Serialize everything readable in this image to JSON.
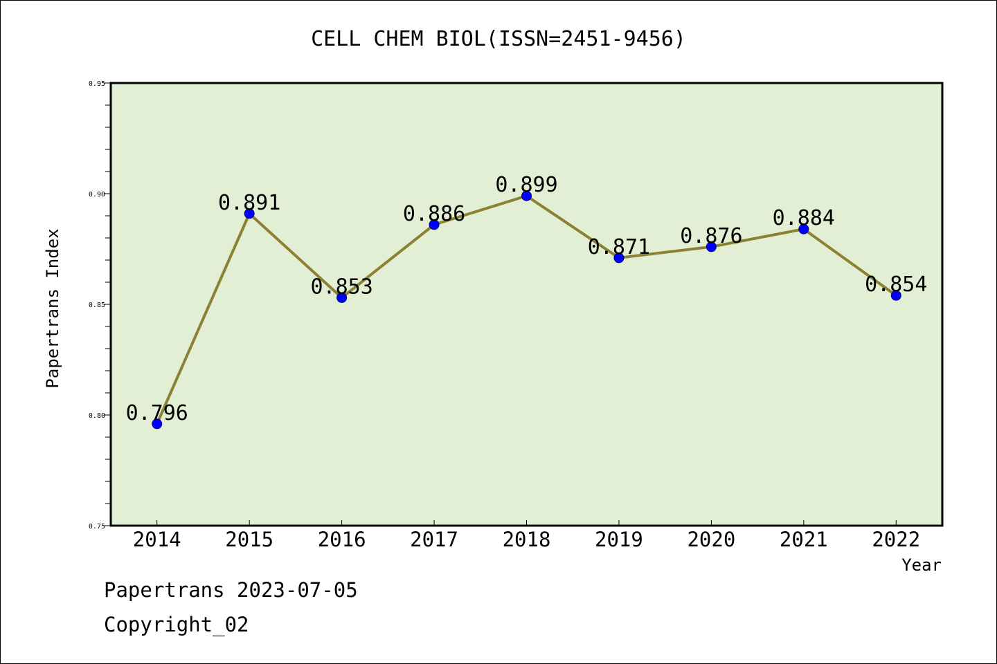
{
  "chart_data": {
    "type": "line",
    "title": "CELL CHEM BIOL(ISSN=2451-9456)",
    "xlabel": "Year",
    "ylabel": "Papertrans Index",
    "categories": [
      "2014",
      "2015",
      "2016",
      "2017",
      "2018",
      "2019",
      "2020",
      "2021",
      "2022"
    ],
    "values": [
      0.796,
      0.891,
      0.853,
      0.886,
      0.899,
      0.871,
      0.876,
      0.884,
      0.854
    ],
    "data_labels": [
      "0.796",
      "0.891",
      "0.853",
      "0.886",
      "0.899",
      "0.871",
      "0.876",
      "0.884",
      "0.854"
    ],
    "ylim": [
      0.75,
      0.95
    ],
    "yticks": [
      "0.75",
      "0.80",
      "0.85",
      "0.90",
      "0.95"
    ],
    "grid": false,
    "colors": {
      "plot_background": "#e2efd5",
      "line": "#8b8133",
      "marker": "#0000ff"
    }
  },
  "footer": {
    "line1": "Papertrans 2023-07-05",
    "line2": "Copyright_02"
  }
}
